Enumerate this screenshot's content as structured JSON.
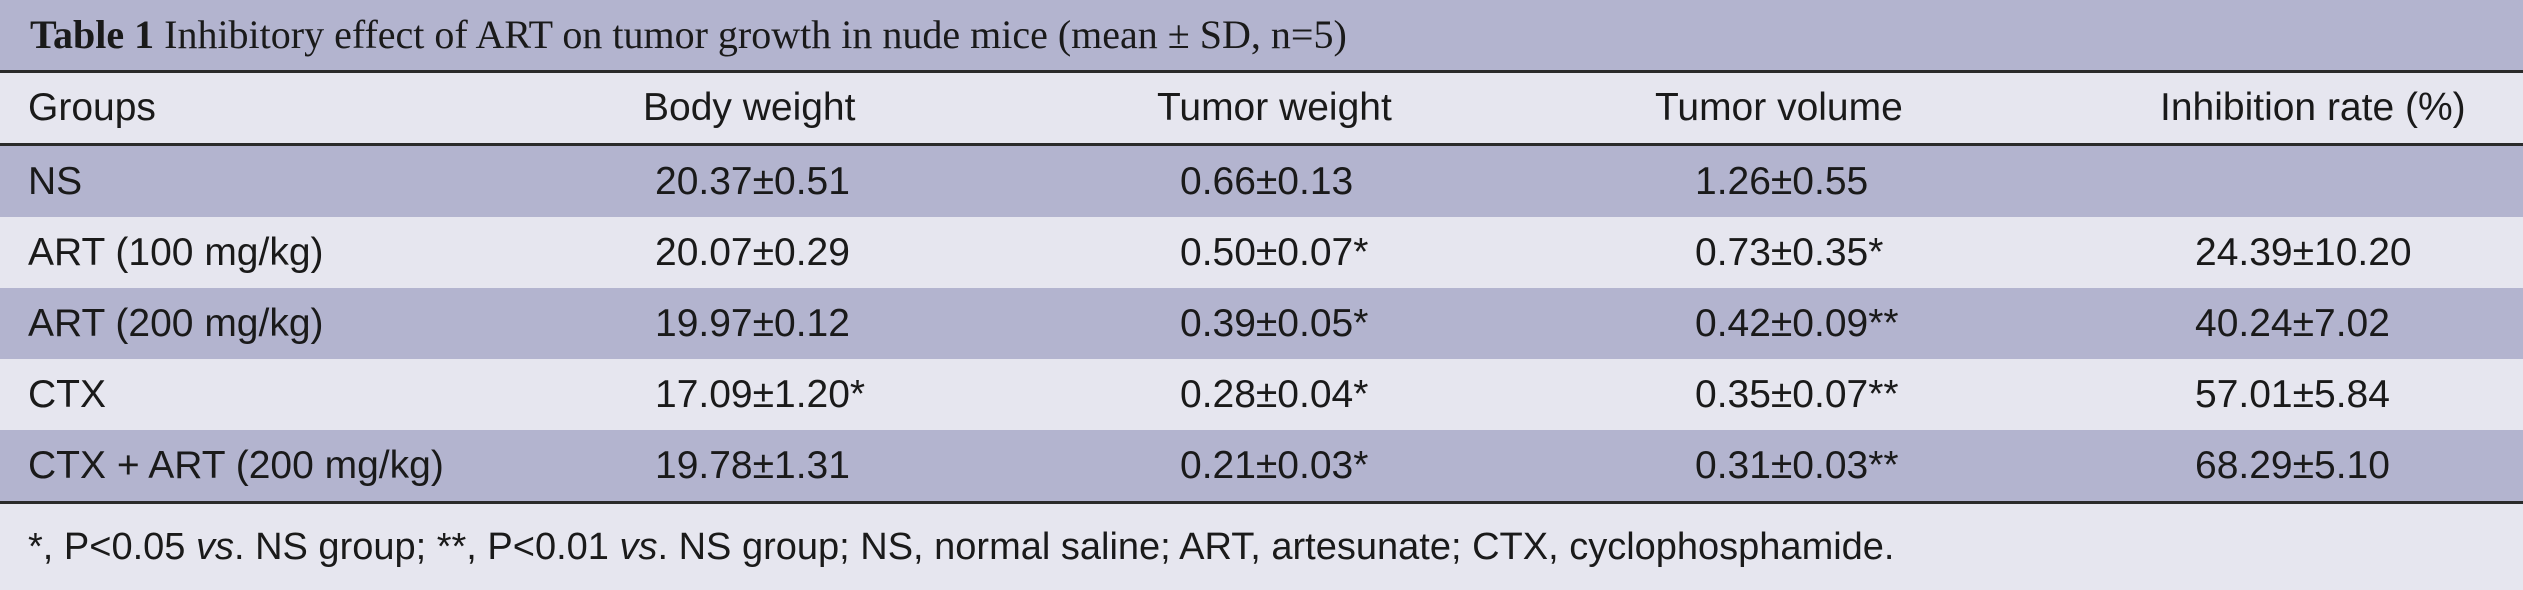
{
  "table": {
    "caption_label": "Table 1",
    "caption_text": " Inhibitory effect of ART on tumor growth in nude mice (mean ± SD, n=5)",
    "headers": [
      "Groups",
      "Body weight",
      "Tumor weight",
      "Tumor volume",
      "Inhibition rate (%)"
    ],
    "rows": [
      [
        "NS",
        "20.37±0.51",
        "0.66±0.13",
        "1.26±0.55",
        ""
      ],
      [
        "ART (100 mg/kg)",
        "20.07±0.29",
        "0.50±0.07*",
        "0.73±0.35*",
        "24.39±10.20"
      ],
      [
        "ART (200 mg/kg)",
        "19.97±0.12",
        "0.39±0.05*",
        "0.42±0.09**",
        "40.24±7.02"
      ],
      [
        "CTX",
        "17.09±1.20*",
        "0.28±0.04*",
        "0.35±0.07**",
        "57.01±5.84"
      ],
      [
        "CTX + ART (200 mg/kg)",
        "19.78±1.31",
        "0.21±0.03*",
        "0.31±0.03**",
        "68.29±5.10"
      ]
    ],
    "footnote": {
      "p1": "*, P<0.05 ",
      "vs1": "vs",
      "p2": ". NS group; **, P<0.01 ",
      "vs2": "vs",
      "p3": ". NS group; NS, normal saline; ART, artesunate; CTX, cyclophosphamide."
    }
  }
}
